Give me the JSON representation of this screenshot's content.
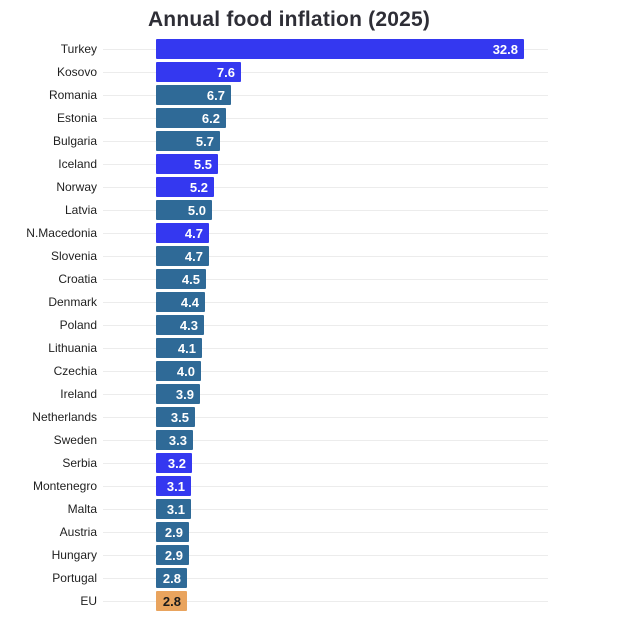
{
  "title": "Annual food inflation (2025)",
  "colors": {
    "non_eu": "#3438f0",
    "eu_member": "#2f6a97",
    "eu_aggregate": "#e9a45e",
    "value_label_light": "#ffffff",
    "value_label_dark": "#1b1b1b",
    "title_text": "#2e2e36",
    "gridline": "#ececec",
    "category_text": "#1f1f1f"
  },
  "chart_data": {
    "type": "bar",
    "orientation": "horizontal",
    "title": "Annual food inflation (2025)",
    "xlabel": "",
    "ylabel": "",
    "xlim": [
      0,
      32.8
    ],
    "grid": "category-center-lines",
    "legend_position": "none",
    "value_labels": "inside-end",
    "categories": [
      "Turkey",
      "Kosovo",
      "Romania",
      "Estonia",
      "Bulgaria",
      "Iceland",
      "Norway",
      "Latvia",
      "N.Macedonia",
      "Slovenia",
      "Croatia",
      "Denmark",
      "Poland",
      "Lithuania",
      "Czechia",
      "Ireland",
      "Netherlands",
      "Sweden",
      "Serbia",
      "Montenegro",
      "Malta",
      "Austria",
      "Hungary",
      "Portugal",
      "EU"
    ],
    "values": [
      32.8,
      7.6,
      6.7,
      6.2,
      5.7,
      5.5,
      5.2,
      5.0,
      4.7,
      4.7,
      4.5,
      4.4,
      4.3,
      4.1,
      4.0,
      3.9,
      3.5,
      3.3,
      3.2,
      3.1,
      3.1,
      2.9,
      2.9,
      2.8,
      2.8
    ],
    "value_display": [
      "32.8",
      "7.6",
      "6.7",
      "6.2",
      "5.7",
      "5.5",
      "5.2",
      "5.0",
      "4.7",
      "4.7",
      "4.5",
      "4.4",
      "4.3",
      "4.1",
      "4.0",
      "3.9",
      "3.5",
      "3.3",
      "3.2",
      "3.1",
      "3.1",
      "2.9",
      "2.9",
      "2.8",
      "2.8"
    ],
    "groups": [
      "non_eu",
      "non_eu",
      "eu_member",
      "eu_member",
      "eu_member",
      "non_eu",
      "non_eu",
      "eu_member",
      "non_eu",
      "eu_member",
      "eu_member",
      "eu_member",
      "eu_member",
      "eu_member",
      "eu_member",
      "eu_member",
      "eu_member",
      "eu_member",
      "non_eu",
      "non_eu",
      "eu_member",
      "eu_member",
      "eu_member",
      "eu_member",
      "eu_aggregate"
    ]
  }
}
